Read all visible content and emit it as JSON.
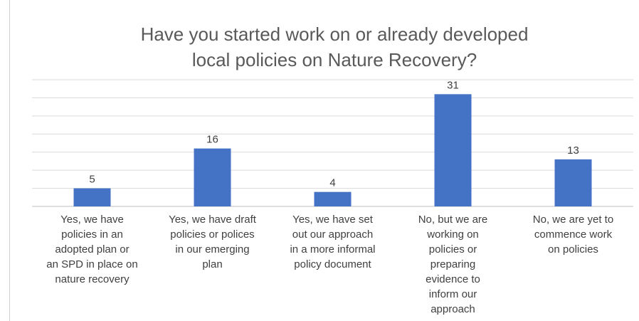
{
  "chart_data": {
    "type": "bar",
    "title": "Have you started work on or already developed local policies on Nature Recovery?",
    "title_lines": [
      "Have you started work on or already developed",
      "local policies on Nature Recovery?"
    ],
    "categories": [
      "Yes, we have policies in an adopted plan or an SPD in place on nature recovery",
      "Yes, we have draft policies or polices in our emerging plan",
      "Yes, we have set out our approach in a more informal policy document",
      "No, but we are working on policies or preparing evidence to inform our approach",
      "No, we are yet to commence work on policies"
    ],
    "category_lines": [
      [
        "Yes, we have",
        "policies in an",
        "adopted plan or",
        "an SPD in place on",
        "nature recovery"
      ],
      [
        "Yes, we have draft",
        "policies or polices",
        "in our emerging",
        "plan"
      ],
      [
        "Yes, we have set",
        "out our approach",
        "in a more informal",
        "policy document"
      ],
      [
        "No, but we are",
        "working on",
        "policies or",
        "preparing",
        "evidence to",
        "inform our",
        "approach"
      ],
      [
        "No, we are yet to",
        "commence work",
        "on policies"
      ]
    ],
    "values": [
      5,
      16,
      4,
      31,
      13
    ],
    "data_labels": [
      "5",
      "16",
      "4",
      "31",
      "13"
    ],
    "ylim": [
      0,
      35
    ],
    "grid": true,
    "legend": "none",
    "bar_color": "#4472C4",
    "gridline_color": "#d9d9d9",
    "text_color": "#404040"
  }
}
